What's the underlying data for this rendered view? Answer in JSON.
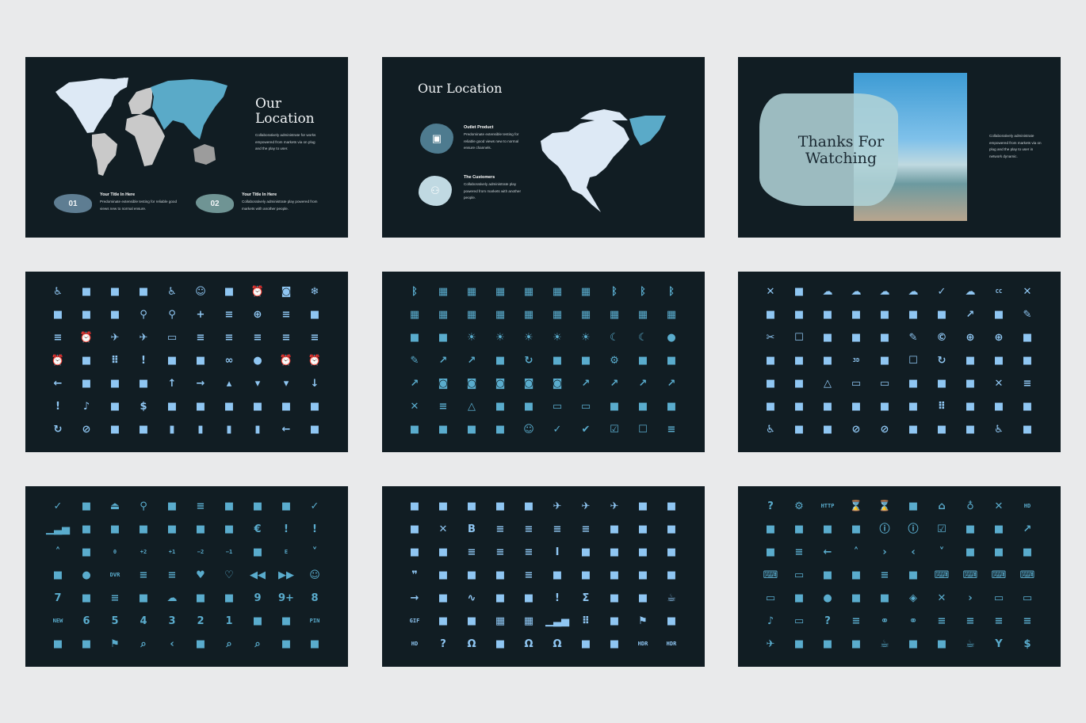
{
  "colors": {
    "page_bg": "#e9eaeb",
    "slide_bg": "#111d23",
    "icon_light": "#8fc6f2",
    "icon_teal": "#5aaccd",
    "map_light": "#dde9f5",
    "map_teal": "#5aaac8",
    "map_grey": "#c9c9c9"
  },
  "slide1": {
    "title_line1": "Our",
    "title_line2": "Location",
    "body": "Collaboratively administrate for works empowered from markets via on plug and the play to user.",
    "items": [
      {
        "number": "01",
        "title": "Your Title  In Here",
        "text": "Predominate extensible testing for reliable good views new to normal ensure.",
        "color": "#5e7d92"
      },
      {
        "number": "02",
        "title": "Your Title  In Here",
        "text": "Collaboratively administrate play powered from markets with another people.",
        "color": "#6f9494"
      }
    ]
  },
  "slide2": {
    "title": "Our Location",
    "items": [
      {
        "icon": "briefcase-icon",
        "title": "Outlet Product",
        "text": "Predominate extensible testing for reliable good views new to normal ensure channels.",
        "color": "#4e7b8f"
      },
      {
        "icon": "people-icon",
        "title": "The Customers",
        "text": "Collaboratively administrate play powered from markets with another people.",
        "color": "#c0d9e2"
      }
    ]
  },
  "slide3": {
    "title_line1": "Thanks For",
    "title_line2": "Watching",
    "body": "Collaboratively administrate empowered from markets via on plug and the play to user in network dynamic."
  },
  "icon_grids": [
    {
      "color": "#8fc6f2",
      "icons": [
        "accessible",
        "account-balance",
        "account-box",
        "android-head",
        "accessibility",
        "account-circle",
        "account-balance-wallet",
        "access-alarm",
        "add-a-photo",
        "ac-unit",
        "add-alert",
        "add-to-queue",
        "add-box",
        "add-location",
        "add-shopping-cart",
        "add",
        "airline-seat-flat",
        "add-circle",
        "airline-seat-flat-angled",
        "adjust",
        "airline-seat-individual-suite",
        "alarm-add",
        "airport-shuttle",
        "airplanemode-inactive",
        "airplay",
        "airline-seat-recline-normal",
        "airline-seat-recline-extra",
        "airline-seat-legroom-extra",
        "airline-seat-legroom-normal",
        "airline-seat-legroom-reduced",
        "alarm-off",
        "archive",
        "apps",
        "announcement",
        "android",
        "all-out",
        "all-inclusive",
        "album",
        "alarm-on",
        "alarm",
        "arrow-back",
        "assignment-ind",
        "aspect-ratio",
        "art-track",
        "arrow-upward",
        "arrow-forward",
        "arrow-drop-up",
        "arrow-drop-down",
        "arrow-drop-down-circle",
        "arrow-downward",
        "assignment-late",
        "audiotrack",
        "attachment",
        "attach-money",
        "attach-file",
        "assistant",
        "assignment",
        "assignment-turned-in",
        "assignment-returned",
        "assignment-return",
        "autorenew",
        "block",
        "verified-user",
        "beach-access",
        "battery-unknown",
        "battery-full",
        "battery-charging-full",
        "battery-alert",
        "backspace",
        "av-timer"
      ]
    },
    {
      "color": "#5aaccd",
      "icons": [
        "bluetooth-searching",
        "border-bottom",
        "border-all",
        "border-clear",
        "border-off",
        "border-top-bar",
        "border-inner-circle",
        "bluetooth",
        "bluetooth-connected",
        "bluetooth-disabled",
        "border-dotted",
        "border-left",
        "border-top",
        "border-outer-corner",
        "border-right",
        "border-outer",
        "border-vertical",
        "border-inner",
        "border-horizontal",
        "border-color",
        "branding-watermark",
        "broken-image",
        "brightness-medium",
        "brightness-high",
        "brightness-low",
        "brightness-auto",
        "brightness-half",
        "brightness-crescent",
        "brightness-moon",
        "brightness-full",
        "brush",
        "call-made",
        "call-end",
        "cake",
        "cached",
        "business-center",
        "burst-mode",
        "build",
        "bug-report",
        "bubble-chart",
        "call-missed",
        "camera",
        "camera-roll",
        "camera-front",
        "camera-rear",
        "camera-alt",
        "call-to-action",
        "call-split",
        "call-received",
        "call-missed-outgoing",
        "cancel",
        "chat-bubble-outline",
        "change-history",
        "center-focus-weak",
        "center-focus-strong",
        "cast",
        "cast-connected",
        "casino",
        "card-travel",
        "card-membership",
        "chat-bubble",
        "chrome-reader-mode",
        "chrome-reader-mode-alt",
        "child-friendly",
        "child-care",
        "check",
        "check-circle",
        "check-box",
        "check-box-outline-blank",
        "short-text"
      ]
    },
    {
      "color": "#8fc6f2",
      "icons": [
        "clear-all",
        "code",
        "cloud-upload",
        "cloud-queue",
        "cloud-off",
        "cloud-download",
        "cloud-done",
        "cloud-circle",
        "closed-caption",
        "close",
        "collections",
        "content-copy",
        "contact-phone",
        "contacts",
        "contact-mail",
        "confirmation-number",
        "compare",
        "compare-arrows",
        "comment",
        "colorize",
        "content-cut",
        "crop-square",
        "crop-7-5",
        "crop-16-9",
        "crop-5-4",
        "create-new-folder",
        "copyright",
        "control-point",
        "control-point-duplicate",
        "content-paste",
        "crop-free",
        "data-usage",
        "dashboard",
        "threed-rotation",
        "crop",
        "crop-din",
        "crop-rotate",
        "crop-portrait",
        "crop-original",
        "crop-landscape",
        "date-range",
        "developer-board",
        "details",
        "desktop-windows",
        "desktop-mac",
        "description",
        "delete",
        "delete-sweep",
        "delete-forever",
        "dehaze",
        "developer-mode",
        "directions-railway",
        "directions-car",
        "directions-bus",
        "directions-boat",
        "directions-bike",
        "dialpad",
        "dialer-sip",
        "devices-other",
        "device-hub",
        "directions-run",
        "domain",
        "stay-current-portrait",
        "do-not-disturb-off",
        "do-not-disturb",
        "dns",
        "disc-full",
        "directions",
        "directions-walk",
        "directions-subway"
      ]
    },
    {
      "color": "#5aaccd",
      "icons": [
        "done-all",
        "enhanced-encryption",
        "eject",
        "edit-location",
        "featured-video",
        "drag-handle",
        "drafts",
        "donut-large",
        "donut-small",
        "done",
        "equalizer",
        "exit-to-app",
        "event-seat",
        "event-note",
        "event-busy",
        "event-available",
        "ev-station",
        "euro-symbol",
        "error",
        "error-outline",
        "expand-less",
        "exposure",
        "exposure-zero",
        "exposure-plus-2",
        "exposure-plus-1",
        "exposure-neg-2",
        "exposure-neg-1",
        "explore",
        "explicit",
        "expand-more",
        "extension",
        "fiber-manual-record",
        "fiber-dvr",
        "featured-play-list",
        "featured-list",
        "favorite",
        "favorite-border",
        "fast-rewind",
        "fast-forward",
        "face",
        "filter-7",
        "filter-none",
        "filter-list",
        "filter-frames",
        "filter-drama",
        "filter-center-focus",
        "filter-b-and-w",
        "filter-9",
        "filter-9+",
        "filter-8",
        "fiber-new",
        "filter-6",
        "filter-5",
        "filter-4",
        "filter-3",
        "filter-2",
        "filter-1",
        "file-upload",
        "flip-toggle",
        "fiber-pin",
        "filter-tilt-shift",
        "flare",
        "flag",
        "zoom-out-map",
        "first-page",
        "fingerprint",
        "find-replace",
        "find-in-page",
        "filter-image",
        "fiber-smart-record"
      ]
    },
    {
      "color": "#8fc6f2",
      "icons": [
        "flash-auto",
        "folder-open",
        "flip",
        "flip-to-front",
        "flip-to-back",
        "flight",
        "flight-takeoff",
        "flight-land",
        "flash-on",
        "flash-off",
        "folder-shared",
        "format-clear",
        "format-bold",
        "format-align-right",
        "format-align-left",
        "format-align-justify",
        "format-align-center",
        "font-download",
        "folder",
        "folder-special",
        "format-color-fill",
        "format-paint",
        "format-list-numbered",
        "format-list-bulleted",
        "format-line-spacing",
        "format-italic",
        "format-indent-increase",
        "format-indent-decrease",
        "format-color-text",
        "format-color-reset",
        "format-quote",
        "forward-30",
        "forward-10",
        "forward-5",
        "format-underlined",
        "format-textdirection-r-to-l",
        "format-textdirection-l-to-r",
        "format-strikethrough",
        "format-size",
        "format-shapes",
        "forward",
        "get-app",
        "gesture",
        "gavel",
        "games",
        "g-translate",
        "functions",
        "fullscreen",
        "fullscreen-exit",
        "free-breakfast",
        "gif",
        "google-circles",
        "group-add",
        "grid-on",
        "grid-off",
        "graphic-eq",
        "grain",
        "gradient",
        "golf-course",
        "goat",
        "hd",
        "help-outline",
        "hearing",
        "healing",
        "headset",
        "headset-mic",
        "hdr-weak",
        "hdr-strong",
        "hdr-on",
        "hdr-off"
      ]
    },
    {
      "color": "#5aaccd",
      "icons": [
        "help",
        "settings-ethernet-box",
        "http",
        "hourglass-full",
        "hourglass-empty",
        "hot-tub",
        "home",
        "highlight",
        "highlight-off",
        "high-quality",
        "import-contacts",
        "insert-drive-file",
        "insert-comment",
        "input",
        "info",
        "info-outline",
        "indeterminate-check-box",
        "inbox",
        "important-devices",
        "import-export",
        "insert-invitation",
        "eject-outline",
        "keyboard-backspace",
        "keyboard-arrow-up",
        "keyboard-arrow-right",
        "keyboard-arrow-left",
        "keyboard-arrow-down",
        "iso",
        "invert-colors",
        "invert-colors-off",
        "keyboard-hide",
        "laptop",
        "language",
        "label",
        "label-outline",
        "kitchen",
        "keyboard",
        "keyboard-voice",
        "keyboard-tab",
        "keyboard-return",
        "laptop-chromebook",
        "library-books",
        "lens",
        "leak-remove",
        "leak-add",
        "layers",
        "layers-clear",
        "last-page",
        "laptop-windows",
        "laptop-mac",
        "library-music",
        "live-tv",
        "live-help",
        "list",
        "linked-camera",
        "link",
        "linear-scale",
        "line-weight",
        "line-style",
        "lightbulb-outline",
        "local-airport",
        "local-hospital",
        "local-gas-station",
        "local-florist",
        "local-drink",
        "local-convenience-store",
        "local-taxi",
        "local-cafe",
        "local-bar",
        "local-atm"
      ]
    }
  ]
}
